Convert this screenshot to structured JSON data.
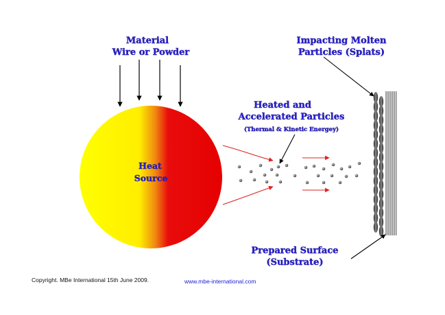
{
  "labels": {
    "material_line1": "Material",
    "material_line2": "Wire or Powder",
    "impacting_line1": "Impacting Molten",
    "impacting_line2": "Particles (Splats)",
    "heated_line1": "Heated and",
    "heated_line2": "Accelerated Particles",
    "heated_line3": "(Thermal & Kinetic Energey)",
    "heat_line1": "Heat",
    "heat_line2": "Source",
    "prepared_line1": "Prepared Surface",
    "prepared_line2": "(Substrate)"
  },
  "footer": {
    "copyright": "Copyright. MBe International 15th June 2009.",
    "website": "www.mbe-international.com"
  },
  "colors": {
    "heat_yellow": "#ffff00",
    "heat_red": "#e60000",
    "flow_arrow": "#e02020",
    "particle": "#555555",
    "label_blue": "#2a1fd0",
    "website_blue": "#1a1ad6"
  }
}
